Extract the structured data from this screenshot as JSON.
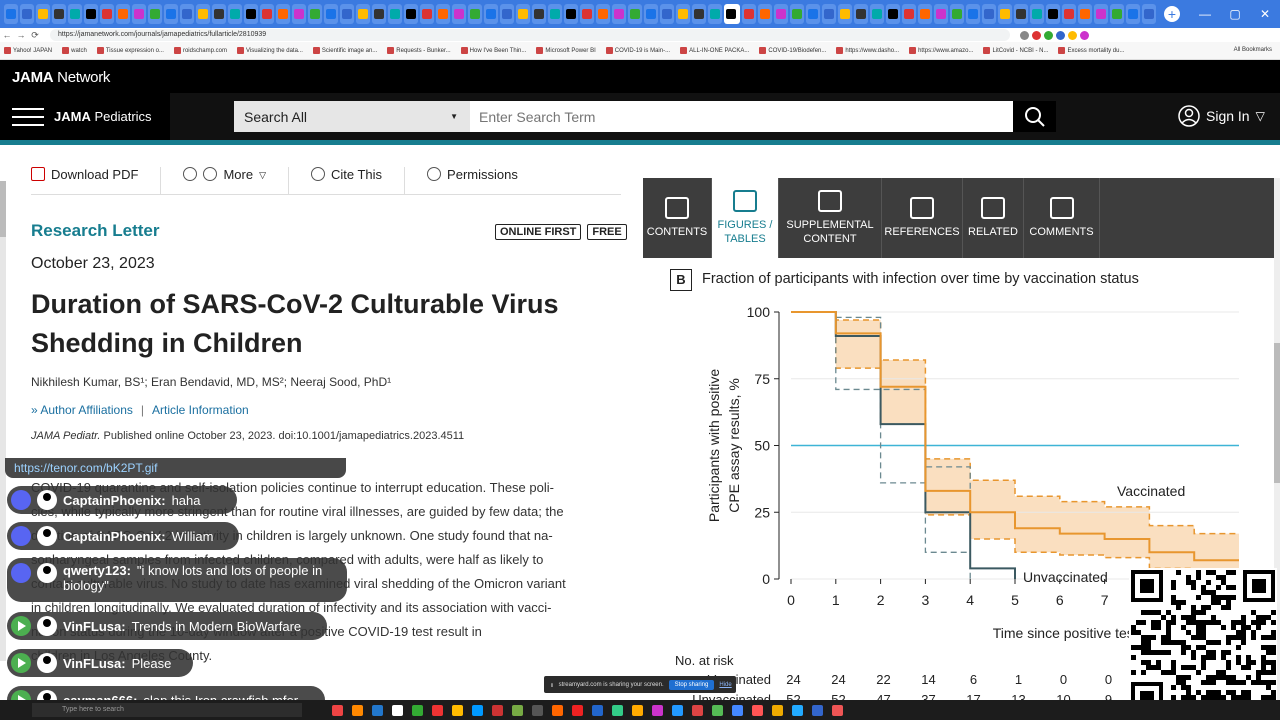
{
  "browser": {
    "url": "https://jamanetwork.com/journals/jamapediatrics/fullarticle/2810939",
    "bookmarks": [
      "Yahoo! JAPAN",
      "watch",
      "Tissue expression o...",
      "roidschamp.com",
      "Visualizing the data...",
      "Scientific image an...",
      "Requests - Bunker...",
      "How I've Been Thin...",
      "Microsoft Power BI",
      "COVID-19 is Main-...",
      "ALL-IN-ONE PACKA...",
      "COVID-19/Biodefen...",
      "https://www.dasho...",
      "https://www.amazo...",
      "LitCovid - NCBI - N...",
      "Excess mortality du..."
    ],
    "all_bookmarks": "All Bookmarks"
  },
  "jama": {
    "network_logo_bold": "JAMA",
    "network_logo_rest": " Network",
    "brand_bold": "JAMA",
    "brand_rest": " Pediatrics",
    "search_scope": "Search All",
    "search_placeholder": "Enter Search Term",
    "sign_in": "Sign In"
  },
  "article": {
    "toolbar": [
      "Download PDF",
      "More",
      "Cite This",
      "Permissions"
    ],
    "section": "Research Letter",
    "badges": [
      "ONLINE FIRST",
      "FREE"
    ],
    "date": "October 23, 2023",
    "title_line1": "Duration of SARS-CoV-2 Culturable Virus",
    "title_line2": "Shedding in Children",
    "authors": "Nikhilesh Kumar, BS¹; Eran Bendavid, MD, MS²; Neeraj Sood, PhD¹",
    "affiliations": "Author Affiliations",
    "article_info": "Article Information",
    "journal_abbrev": "JAMA Pediatr.",
    "citation_rest": " Published online October 23, 2023. doi:10.1001/jamapediatrics.2023.4511",
    "body_lines": [
      "COVID-19 quarantine and self-isolation policies continue to interrupt education. These poli-",
      "cies, while typically more stringent than for routine viral illnesses, are guided by few data; the",
      "duration of SARS-CoV-2 infectivity in children is largely unknown. One study found that na-",
      "sopharyngeal samples from infected children, compared with adults, were half as likely to",
      "contain culturable virus. No study to date has examined viral shedding of the Omicron variant",
      "in children longitudinally. We evaluated duration of infectivity and its association with vacci-",
      "nation status during the 10-day window after a positive COVID-19 test result in",
      "children in Los Angeles County."
    ]
  },
  "panel": {
    "tabs": [
      {
        "label": "CONTENTS",
        "active": false
      },
      {
        "label": "FIGURES / TABLES",
        "active": true
      },
      {
        "label": "SUPPLEMENTAL CONTENT",
        "active": false
      },
      {
        "label": "REFERENCES",
        "active": false
      },
      {
        "label": "RELATED",
        "active": false
      },
      {
        "label": "COMMENTS",
        "active": false
      }
    ],
    "figure_letter": "B",
    "figure_title": "Fraction of participants with infection over time by vaccination status",
    "no_at_risk": "No. at risk",
    "risk_rows": [
      {
        "label": "Vaccinated",
        "values": [
          "24",
          "24",
          "22",
          "14",
          "6",
          "1",
          "0",
          "0"
        ]
      },
      {
        "label": "Unvaccinated",
        "values": [
          "52",
          "52",
          "47",
          "37",
          "17",
          "13",
          "10",
          "9"
        ]
      }
    ]
  },
  "chart_data": {
    "type": "line",
    "xlabel": "Time since positive test, d",
    "ylabel": "Participants with positive CPE assay results, %",
    "x_ticks": [
      0,
      1,
      2,
      3,
      4,
      5,
      6,
      7
    ],
    "y_ticks": [
      0,
      25,
      50,
      75,
      100
    ],
    "xlim": [
      0,
      10
    ],
    "ylim": [
      0,
      100
    ],
    "reference_line": 50,
    "series": [
      {
        "name": "Vaccinated",
        "color": "#e8962e",
        "steps": [
          [
            0,
            100
          ],
          [
            1,
            92
          ],
          [
            2,
            72
          ],
          [
            3,
            33
          ],
          [
            4,
            25
          ],
          [
            5,
            19
          ],
          [
            6,
            17
          ],
          [
            7,
            15
          ],
          [
            8,
            10
          ],
          [
            9,
            7
          ],
          [
            10,
            7
          ]
        ],
        "ci_upper": [
          [
            0,
            100
          ],
          [
            1,
            97
          ],
          [
            2,
            82
          ],
          [
            3,
            45
          ],
          [
            4,
            37
          ],
          [
            5,
            31
          ],
          [
            6,
            29
          ],
          [
            7,
            27
          ],
          [
            8,
            20
          ],
          [
            9,
            17
          ],
          [
            10,
            17
          ]
        ],
        "ci_lower": [
          [
            0,
            100
          ],
          [
            1,
            79
          ],
          [
            2,
            58
          ],
          [
            3,
            24
          ],
          [
            4,
            15
          ],
          [
            5,
            10
          ],
          [
            6,
            9
          ],
          [
            7,
            8
          ],
          [
            8,
            4
          ],
          [
            9,
            2
          ],
          [
            10,
            2
          ]
        ]
      },
      {
        "name": "Unvaccinated",
        "color": "#3b5961",
        "steps": [
          [
            0,
            100
          ],
          [
            1,
            91
          ],
          [
            2,
            58
          ],
          [
            3,
            25
          ],
          [
            4,
            4
          ],
          [
            5,
            0
          ]
        ],
        "ci_upper": [
          [
            0,
            100
          ],
          [
            1,
            98
          ],
          [
            2,
            71
          ],
          [
            3,
            42
          ],
          [
            4,
            10
          ]
        ],
        "ci_lower": [
          [
            0,
            100
          ],
          [
            1,
            71
          ],
          [
            2,
            36
          ],
          [
            3,
            10
          ],
          [
            4,
            0
          ]
        ]
      }
    ]
  },
  "chat": {
    "gif_link": "https://tenor.com/bK2PT.gif",
    "messages": [
      {
        "source": "discord",
        "name": "CaptainPhoenix:",
        "text": "haha"
      },
      {
        "source": "discord",
        "name": "CaptainPhoenix:",
        "text": "William"
      },
      {
        "source": "discord",
        "name": "qwerty123:",
        "text": "\"i know lots and lots of people in biology\""
      },
      {
        "source": "youtube",
        "name": "VinFLusa:",
        "text": "Trends in Modern BioWarfare"
      },
      {
        "source": "youtube",
        "name": "VinFLusa:",
        "text": "Please"
      },
      {
        "source": "youtube",
        "name": "cayman666:",
        "text": "slap this Iron crawfish mfer"
      }
    ]
  },
  "sharebar": {
    "message": "streamyard.com is sharing your screen.",
    "stop": "Stop sharing",
    "hide": "Hide"
  },
  "taskbar": {
    "search": "Type here to search"
  }
}
